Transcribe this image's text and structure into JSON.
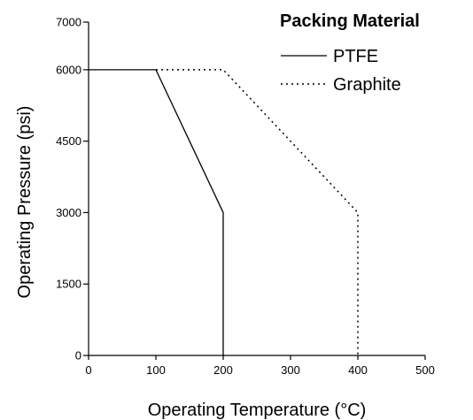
{
  "chart_data": {
    "type": "line",
    "xlabel": "Operating Temperature (°C)",
    "ylabel": "Operating Pressure (psi)",
    "xlim": [
      0,
      500
    ],
    "ylim": [
      0,
      7000
    ],
    "xticks": [
      "0",
      "100",
      "200",
      "300",
      "400",
      "500"
    ],
    "yticks": [
      "0",
      "1500",
      "3000",
      "4500",
      "6000",
      "7000"
    ],
    "grid": false,
    "legend": {
      "title": "Packing Material",
      "placement": "top-right"
    },
    "series": [
      {
        "name": "PTFE",
        "line_style": "solid",
        "color": "#000000",
        "points": [
          [
            0,
            6000
          ],
          [
            100,
            6000
          ],
          [
            200,
            3000
          ],
          [
            200,
            0
          ]
        ]
      },
      {
        "name": "Graphite",
        "line_style": "dotted",
        "color": "#000000",
        "points": [
          [
            100,
            6000
          ],
          [
            200,
            6000
          ],
          [
            400,
            3000
          ],
          [
            400,
            0
          ]
        ]
      }
    ]
  }
}
